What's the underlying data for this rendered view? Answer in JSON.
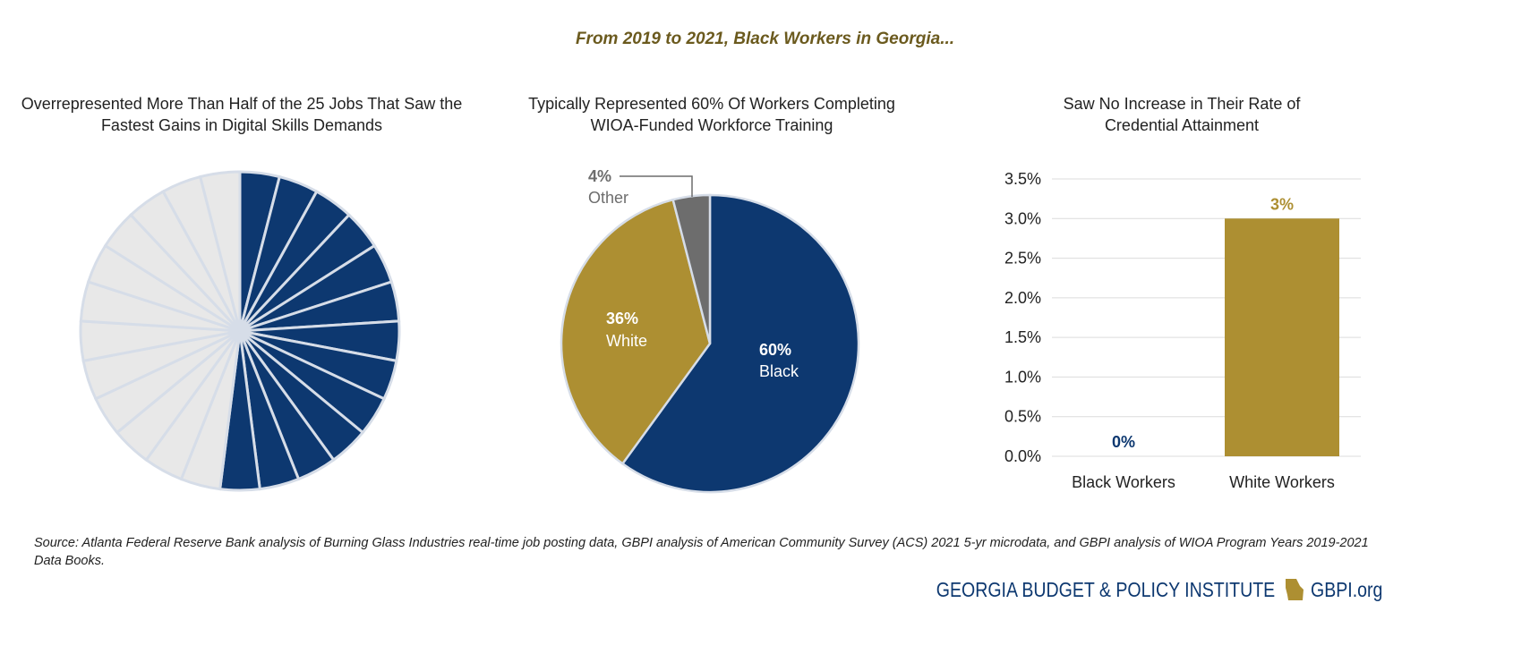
{
  "title": "From 2019 to 2021, Black Workers in Georgia...",
  "colors": {
    "blue": "#0d3870",
    "gold": "#ad8f32",
    "gray": "#6d6d6d",
    "light": "#e8e8e8",
    "stroke": "#d6dde8"
  },
  "chart_data": [
    {
      "type": "pie",
      "title": "Overrepresented More Than Half of the 25 Jobs That Saw the Fastest Gains in Digital Skills Demands",
      "total_jobs": 25,
      "black_overrepresented": 13,
      "other": 12
    },
    {
      "type": "pie",
      "title": "Typically Represented 60% Of Workers Completing WIOA-Funded Workforce Training",
      "slices": [
        {
          "label": "Black",
          "value": 60,
          "display": "60%"
        },
        {
          "label": "White",
          "value": 36,
          "display": "36%"
        },
        {
          "label": "Other",
          "value": 4,
          "display": "4%"
        }
      ]
    },
    {
      "type": "bar",
      "title": "Saw No Increase in Their Rate of Credential Attainment",
      "categories": [
        "Black Workers",
        "White Workers"
      ],
      "values": [
        0,
        3
      ],
      "data_labels": [
        "0%",
        "3%"
      ],
      "ylim": [
        0,
        3.5
      ],
      "yticks": [
        "0.0%",
        "0.5%",
        "1.0%",
        "1.5%",
        "2.0%",
        "2.5%",
        "3.0%",
        "3.5%"
      ],
      "grid": true
    }
  ],
  "source": "Source: Atlanta Federal Reserve Bank analysis of Burning Glass Industries real-time job posting data, GBPI analysis of American Community Survey (ACS) 2021 5-yr microdata, and GBPI analysis of WIOA Program Years 2019-2021 Data Books.",
  "footer": {
    "org": "GEORGIA BUDGET & POLICY INSTITUTE",
    "site": "GBPI.org"
  }
}
